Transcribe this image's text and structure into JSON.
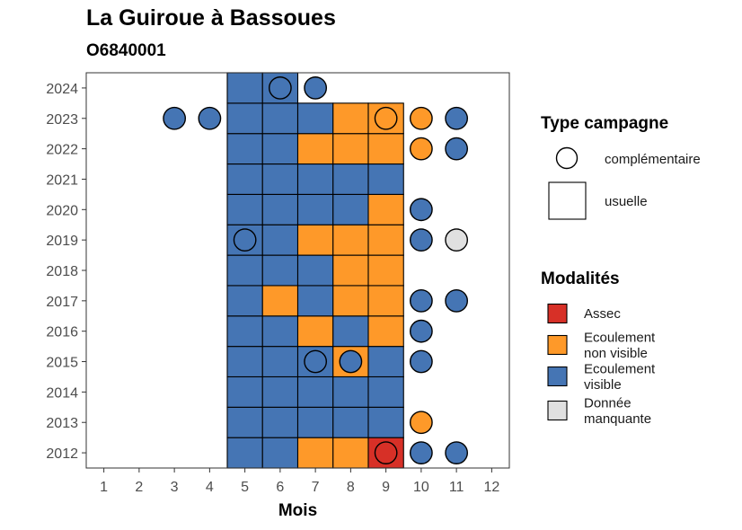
{
  "title": "La Guiroue à Bassoues",
  "subtitle": "O6840001",
  "chart_data": {
    "type": "heatmap",
    "xlabel": "Mois",
    "ylabel": "",
    "x_ticks": [
      1,
      2,
      3,
      4,
      5,
      6,
      7,
      8,
      9,
      10,
      11,
      12
    ],
    "y_ticks": [
      2012,
      2013,
      2014,
      2015,
      2016,
      2017,
      2018,
      2019,
      2020,
      2021,
      2022,
      2023,
      2024
    ],
    "xlim": [
      0.5,
      12.5
    ],
    "ylim": [
      2011.5,
      2024.5
    ],
    "grid": false,
    "legend_placement": "right",
    "colors": {
      "Assec": "#d73027",
      "Ecoulement non visible": "#fe9929",
      "Ecoulement visible": "#4575b4",
      "Donnée manquante": "#e0e0e0"
    },
    "legend_shape": {
      "title": "Type campagne",
      "entries": [
        "complémentaire",
        "usuelle"
      ]
    },
    "legend_fill": {
      "title": "Modalités",
      "entries": [
        {
          "key": "Assec",
          "lines": [
            "Assec"
          ]
        },
        {
          "key": "Ecoulement non visible",
          "lines": [
            "Ecoulement",
            "non visible"
          ]
        },
        {
          "key": "Ecoulement visible",
          "lines": [
            "Ecoulement",
            "visible"
          ]
        },
        {
          "key": "Donnée manquante",
          "lines": [
            "Donnée",
            "manquante"
          ]
        }
      ]
    },
    "usuelle": [
      {
        "year": 2012,
        "month": 5,
        "value": "Ecoulement visible"
      },
      {
        "year": 2012,
        "month": 6,
        "value": "Ecoulement visible"
      },
      {
        "year": 2012,
        "month": 7,
        "value": "Ecoulement non visible"
      },
      {
        "year": 2012,
        "month": 8,
        "value": "Ecoulement non visible"
      },
      {
        "year": 2012,
        "month": 9,
        "value": "Assec"
      },
      {
        "year": 2013,
        "month": 5,
        "value": "Ecoulement visible"
      },
      {
        "year": 2013,
        "month": 6,
        "value": "Ecoulement visible"
      },
      {
        "year": 2013,
        "month": 7,
        "value": "Ecoulement visible"
      },
      {
        "year": 2013,
        "month": 8,
        "value": "Ecoulement visible"
      },
      {
        "year": 2013,
        "month": 9,
        "value": "Ecoulement visible"
      },
      {
        "year": 2014,
        "month": 5,
        "value": "Ecoulement visible"
      },
      {
        "year": 2014,
        "month": 6,
        "value": "Ecoulement visible"
      },
      {
        "year": 2014,
        "month": 7,
        "value": "Ecoulement visible"
      },
      {
        "year": 2014,
        "month": 8,
        "value": "Ecoulement visible"
      },
      {
        "year": 2014,
        "month": 9,
        "value": "Ecoulement visible"
      },
      {
        "year": 2015,
        "month": 5,
        "value": "Ecoulement visible"
      },
      {
        "year": 2015,
        "month": 6,
        "value": "Ecoulement visible"
      },
      {
        "year": 2015,
        "month": 7,
        "value": "Ecoulement visible"
      },
      {
        "year": 2015,
        "month": 8,
        "value": "Ecoulement non visible"
      },
      {
        "year": 2015,
        "month": 9,
        "value": "Ecoulement visible"
      },
      {
        "year": 2016,
        "month": 5,
        "value": "Ecoulement visible"
      },
      {
        "year": 2016,
        "month": 6,
        "value": "Ecoulement visible"
      },
      {
        "year": 2016,
        "month": 7,
        "value": "Ecoulement non visible"
      },
      {
        "year": 2016,
        "month": 8,
        "value": "Ecoulement visible"
      },
      {
        "year": 2016,
        "month": 9,
        "value": "Ecoulement non visible"
      },
      {
        "year": 2017,
        "month": 5,
        "value": "Ecoulement visible"
      },
      {
        "year": 2017,
        "month": 6,
        "value": "Ecoulement non visible"
      },
      {
        "year": 2017,
        "month": 7,
        "value": "Ecoulement visible"
      },
      {
        "year": 2017,
        "month": 8,
        "value": "Ecoulement non visible"
      },
      {
        "year": 2017,
        "month": 9,
        "value": "Ecoulement non visible"
      },
      {
        "year": 2018,
        "month": 5,
        "value": "Ecoulement visible"
      },
      {
        "year": 2018,
        "month": 6,
        "value": "Ecoulement visible"
      },
      {
        "year": 2018,
        "month": 7,
        "value": "Ecoulement visible"
      },
      {
        "year": 2018,
        "month": 8,
        "value": "Ecoulement non visible"
      },
      {
        "year": 2018,
        "month": 9,
        "value": "Ecoulement non visible"
      },
      {
        "year": 2019,
        "month": 5,
        "value": "Ecoulement visible"
      },
      {
        "year": 2019,
        "month": 6,
        "value": "Ecoulement visible"
      },
      {
        "year": 2019,
        "month": 7,
        "value": "Ecoulement non visible"
      },
      {
        "year": 2019,
        "month": 8,
        "value": "Ecoulement non visible"
      },
      {
        "year": 2019,
        "month": 9,
        "value": "Ecoulement non visible"
      },
      {
        "year": 2020,
        "month": 5,
        "value": "Ecoulement visible"
      },
      {
        "year": 2020,
        "month": 6,
        "value": "Ecoulement visible"
      },
      {
        "year": 2020,
        "month": 7,
        "value": "Ecoulement visible"
      },
      {
        "year": 2020,
        "month": 8,
        "value": "Ecoulement visible"
      },
      {
        "year": 2020,
        "month": 9,
        "value": "Ecoulement non visible"
      },
      {
        "year": 2021,
        "month": 5,
        "value": "Ecoulement visible"
      },
      {
        "year": 2021,
        "month": 6,
        "value": "Ecoulement visible"
      },
      {
        "year": 2021,
        "month": 7,
        "value": "Ecoulement visible"
      },
      {
        "year": 2021,
        "month": 8,
        "value": "Ecoulement visible"
      },
      {
        "year": 2021,
        "month": 9,
        "value": "Ecoulement visible"
      },
      {
        "year": 2022,
        "month": 5,
        "value": "Ecoulement visible"
      },
      {
        "year": 2022,
        "month": 6,
        "value": "Ecoulement visible"
      },
      {
        "year": 2022,
        "month": 7,
        "value": "Ecoulement non visible"
      },
      {
        "year": 2022,
        "month": 8,
        "value": "Ecoulement non visible"
      },
      {
        "year": 2022,
        "month": 9,
        "value": "Ecoulement non visible"
      },
      {
        "year": 2023,
        "month": 5,
        "value": "Ecoulement visible"
      },
      {
        "year": 2023,
        "month": 6,
        "value": "Ecoulement visible"
      },
      {
        "year": 2023,
        "month": 7,
        "value": "Ecoulement visible"
      },
      {
        "year": 2023,
        "month": 8,
        "value": "Ecoulement non visible"
      },
      {
        "year": 2023,
        "month": 9,
        "value": "Ecoulement non visible"
      },
      {
        "year": 2024,
        "month": 5,
        "value": "Ecoulement visible"
      },
      {
        "year": 2024,
        "month": 6,
        "value": "Ecoulement visible"
      }
    ],
    "complementaire": [
      {
        "year": 2012,
        "month": 9,
        "value": "Assec"
      },
      {
        "year": 2012,
        "month": 10,
        "value": "Ecoulement visible"
      },
      {
        "year": 2012,
        "month": 11,
        "value": "Ecoulement visible"
      },
      {
        "year": 2013,
        "month": 10,
        "value": "Ecoulement non visible"
      },
      {
        "year": 2015,
        "month": 7,
        "value": "Ecoulement visible"
      },
      {
        "year": 2015,
        "month": 8,
        "value": "Ecoulement visible"
      },
      {
        "year": 2015,
        "month": 10,
        "value": "Ecoulement visible"
      },
      {
        "year": 2016,
        "month": 10,
        "value": "Ecoulement visible"
      },
      {
        "year": 2017,
        "month": 10,
        "value": "Ecoulement visible"
      },
      {
        "year": 2017,
        "month": 11,
        "value": "Ecoulement visible"
      },
      {
        "year": 2019,
        "month": 5,
        "value": "Ecoulement visible"
      },
      {
        "year": 2019,
        "month": 10,
        "value": "Ecoulement visible"
      },
      {
        "year": 2019,
        "month": 11,
        "value": "Donnée manquante"
      },
      {
        "year": 2020,
        "month": 10,
        "value": "Ecoulement visible"
      },
      {
        "year": 2022,
        "month": 10,
        "value": "Ecoulement non visible"
      },
      {
        "year": 2022,
        "month": 11,
        "value": "Ecoulement visible"
      },
      {
        "year": 2023,
        "month": 3,
        "value": "Ecoulement visible"
      },
      {
        "year": 2023,
        "month": 4,
        "value": "Ecoulement visible"
      },
      {
        "year": 2023,
        "month": 9,
        "value": "Ecoulement non visible"
      },
      {
        "year": 2023,
        "month": 10,
        "value": "Ecoulement non visible"
      },
      {
        "year": 2023,
        "month": 11,
        "value": "Ecoulement visible"
      },
      {
        "year": 2024,
        "month": 6,
        "value": "Ecoulement visible"
      },
      {
        "year": 2024,
        "month": 7,
        "value": "Ecoulement visible"
      }
    ]
  }
}
